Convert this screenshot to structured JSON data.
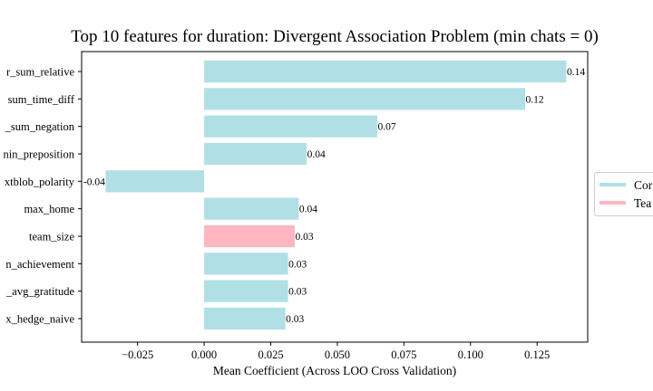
{
  "chart_data": {
    "type": "bar",
    "orientation": "horizontal",
    "title": "Top 10 features for duration: Divergent Association Problem (min chats = 0)",
    "xlabel": "Mean Coefficient (Across LOO Cross Validation)",
    "ylabel": "",
    "xlim": [
      -0.046,
      0.144
    ],
    "xticks": [
      -0.025,
      0.0,
      0.025,
      0.05,
      0.075,
      0.1,
      0.125
    ],
    "xtick_labels": [
      "−0.025",
      "0.000",
      "0.025",
      "0.050",
      "0.075",
      "0.100",
      "0.125"
    ],
    "grid": false,
    "legend_position": "right, clipped",
    "colors": {
      "conversation": "#b0e0e6",
      "team": "#ffb6c1"
    },
    "legend": [
      {
        "label": "Cor",
        "color": "#b0e0e6"
      },
      {
        "label": "Tea",
        "color": "#ffb6c1"
      }
    ],
    "bars": [
      {
        "label": "r_sum_relative",
        "value": 0.136,
        "value_label": "0.14",
        "group": "conversation"
      },
      {
        "label": "sum_time_diff",
        "value": 0.1205,
        "value_label": "0.12",
        "group": "conversation"
      },
      {
        "label": "_sum_negation",
        "value": 0.065,
        "value_label": "0.07",
        "group": "conversation"
      },
      {
        "label": "nin_preposition",
        "value": 0.0385,
        "value_label": "0.04",
        "group": "conversation"
      },
      {
        "label": "xtblob_polarity",
        "value": -0.037,
        "value_label": "-0.04",
        "group": "conversation"
      },
      {
        "label": "max_home",
        "value": 0.0355,
        "value_label": "0.04",
        "group": "conversation"
      },
      {
        "label": "team_size",
        "value": 0.034,
        "value_label": "0.03",
        "group": "team"
      },
      {
        "label": "n_achievement",
        "value": 0.0315,
        "value_label": "0.03",
        "group": "conversation"
      },
      {
        "label": "_avg_gratitude",
        "value": 0.0315,
        "value_label": "0.03",
        "group": "conversation"
      },
      {
        "label": "x_hedge_naive",
        "value": 0.0305,
        "value_label": "0.03",
        "group": "conversation"
      }
    ]
  }
}
